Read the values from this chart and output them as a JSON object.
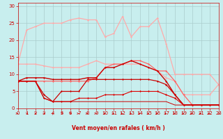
{
  "background_color": "#c8eeee",
  "grid_color": "#aacccc",
  "xlabel": "Vent moyen/en rafales ( km/h )",
  "xlim": [
    0,
    23
  ],
  "ylim": [
    0,
    31
  ],
  "yticks": [
    0,
    5,
    10,
    15,
    20,
    25,
    30
  ],
  "xticks": [
    0,
    1,
    2,
    3,
    4,
    5,
    6,
    7,
    8,
    9,
    10,
    11,
    12,
    13,
    14,
    15,
    16,
    17,
    18,
    19,
    20,
    21,
    22,
    23
  ],
  "series": [
    {
      "x": [
        0,
        1,
        2,
        3,
        4,
        5,
        6,
        7,
        8,
        9,
        10,
        11,
        12,
        13,
        14,
        15,
        16,
        17,
        18,
        19,
        20,
        21,
        22,
        23
      ],
      "y": [
        13,
        23,
        24,
        25,
        25,
        25,
        26,
        26.5,
        26,
        26,
        21,
        22,
        27,
        21,
        24,
        24,
        26.5,
        19,
        10,
        10,
        10,
        10,
        10,
        7
      ],
      "color": "#ffaaaa",
      "lw": 0.9,
      "marker": "D",
      "ms": 1.5
    },
    {
      "x": [
        0,
        1,
        2,
        3,
        4,
        5,
        6,
        7,
        8,
        9,
        10,
        11,
        12,
        13,
        14,
        15,
        16,
        17,
        18,
        19,
        20,
        21,
        22,
        23
      ],
      "y": [
        13,
        13,
        13,
        12.5,
        12,
        12,
        12,
        12,
        13,
        14,
        13,
        13,
        13,
        13,
        13,
        12,
        11,
        9,
        8,
        4,
        4,
        4,
        4,
        7
      ],
      "color": "#ffaaaa",
      "lw": 0.9,
      "marker": "D",
      "ms": 1.5
    },
    {
      "x": [
        0,
        1,
        2,
        3,
        4,
        5,
        6,
        7,
        8,
        9,
        10,
        11,
        12,
        13,
        14,
        15,
        16,
        17,
        18,
        19,
        20,
        21,
        22,
        23
      ],
      "y": [
        8,
        8,
        8,
        8,
        8,
        8,
        8,
        8,
        8,
        9,
        12,
        13,
        13,
        14,
        14,
        13,
        11,
        11,
        8,
        4,
        1,
        1,
        1,
        1
      ],
      "color": "#ff6666",
      "lw": 0.9,
      "marker": "D",
      "ms": 1.5
    },
    {
      "x": [
        0,
        1,
        2,
        3,
        4,
        5,
        6,
        7,
        8,
        9,
        10,
        11,
        12,
        13,
        14,
        15,
        16,
        17,
        18,
        19,
        20,
        21,
        22,
        23
      ],
      "y": [
        8,
        9,
        9,
        9,
        8.5,
        8.5,
        8.5,
        8.5,
        9,
        9,
        12,
        12,
        13,
        14,
        13,
        12,
        11,
        8,
        4,
        1,
        1,
        1,
        1,
        1
      ],
      "color": "#cc0000",
      "lw": 1.0,
      "marker": "D",
      "ms": 1.5
    },
    {
      "x": [
        0,
        1,
        2,
        3,
        4,
        5,
        6,
        7,
        8,
        9,
        10,
        11,
        12,
        13,
        14,
        15,
        16,
        17,
        18,
        19,
        20,
        21,
        22,
        23
      ],
      "y": [
        8,
        8,
        8,
        4,
        2,
        5,
        5,
        5,
        8.5,
        8.5,
        8.5,
        8.5,
        8.5,
        8.5,
        8.5,
        8.5,
        8,
        7,
        4,
        1,
        1,
        1,
        1,
        1
      ],
      "color": "#cc0000",
      "lw": 0.9,
      "marker": "D",
      "ms": 1.5
    },
    {
      "x": [
        0,
        1,
        2,
        3,
        4,
        5,
        6,
        7,
        8,
        9,
        10,
        11,
        12,
        13,
        14,
        15,
        16,
        17,
        18,
        19,
        20,
        21,
        22,
        23
      ],
      "y": [
        8,
        8,
        8,
        3,
        2,
        2,
        2,
        3,
        3,
        3,
        4,
        4,
        4,
        5,
        5,
        5,
        5,
        4,
        3,
        1,
        1,
        1,
        1,
        1
      ],
      "color": "#dd0000",
      "lw": 0.8,
      "marker": "D",
      "ms": 1.5
    },
    {
      "x": [
        0,
        1,
        2,
        3,
        4,
        5,
        6,
        7,
        8,
        9,
        10,
        11,
        12,
        13,
        14,
        15,
        16,
        17,
        18,
        19,
        20,
        21,
        22,
        23
      ],
      "y": [
        8,
        8,
        8,
        3,
        2,
        2,
        2,
        2,
        2,
        2,
        2,
        2,
        2,
        2,
        2,
        2,
        2,
        2,
        1,
        1,
        1,
        1,
        1,
        1
      ],
      "color": "#cc0000",
      "lw": 0.7,
      "marker": null,
      "ms": 0
    }
  ],
  "arrow_angles": [
    90,
    45,
    45,
    30,
    20,
    45,
    45,
    90,
    90,
    90,
    90,
    90,
    90,
    90,
    90,
    90,
    90,
    90,
    90,
    90,
    90,
    90,
    90,
    45
  ],
  "xlabel_color": "#cc0000",
  "tick_color": "#cc0000",
  "xlabel_fontsize": 5.5,
  "tick_fontsize": 5,
  "ytick_fontsize": 5
}
